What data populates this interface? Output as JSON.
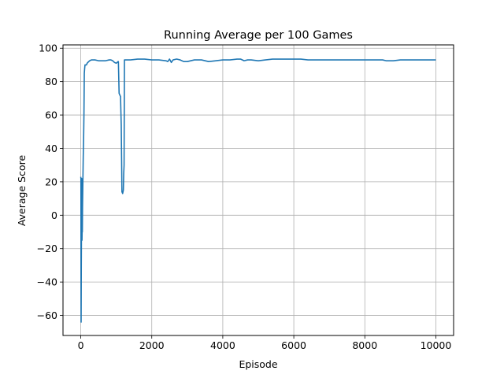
{
  "chart_data": {
    "type": "line",
    "title": "Running Average per 100 Games",
    "xlabel": "Episode",
    "ylabel": "Average Score",
    "xlim": [
      -500,
      10500
    ],
    "ylim": [
      -72,
      102
    ],
    "x_ticks": [
      0,
      2000,
      4000,
      6000,
      8000,
      10000
    ],
    "y_ticks": [
      -60,
      -40,
      -20,
      0,
      20,
      40,
      60,
      80,
      100
    ],
    "grid": true,
    "colors": {
      "line": "#1f77b4",
      "grid": "#b0b0b0",
      "axes": "#000000"
    },
    "series": [
      {
        "x": [
          0,
          5,
          10,
          15,
          20,
          25,
          30,
          35,
          40,
          45,
          50,
          60,
          70,
          80,
          90,
          100,
          110,
          120,
          140,
          160,
          180,
          200,
          250,
          300,
          350,
          400,
          500,
          600,
          700,
          800,
          850,
          900,
          950,
          1000,
          1050,
          1060,
          1080,
          1100,
          1120,
          1140,
          1160,
          1180,
          1200,
          1210,
          1220,
          1230,
          1250,
          1300,
          1400,
          1600,
          1800,
          2000,
          2200,
          2400,
          2450,
          2500,
          2550,
          2600,
          2700,
          2800,
          2900,
          3000,
          3200,
          3400,
          3600,
          3800,
          4000,
          4200,
          4400,
          4500,
          4600,
          4700,
          4800,
          5000,
          5200,
          5400,
          5600,
          5800,
          6000,
          6200,
          6400,
          6600,
          6800,
          7000,
          7200,
          7400,
          7600,
          7800,
          8000,
          8200,
          8400,
          8500,
          8600,
          8800,
          9000,
          9200,
          9400,
          9600,
          9800,
          10000
        ],
        "y": [
          23,
          22,
          -64,
          -32,
          -10,
          22,
          10,
          -15,
          -8,
          -10,
          5,
          20,
          35,
          45,
          60,
          85,
          88,
          90,
          90,
          90,
          91,
          91.5,
          92.5,
          93,
          93,
          93,
          92.5,
          92.5,
          92.5,
          93,
          93,
          92.5,
          91.5,
          91,
          92,
          92,
          73,
          72,
          71,
          54,
          14,
          13,
          15,
          25,
          30,
          93,
          93,
          93,
          93,
          93.5,
          93.5,
          93,
          93,
          92.5,
          92,
          93.5,
          91.5,
          93,
          93.5,
          93,
          92,
          92,
          93,
          93,
          92,
          92.5,
          93,
          93,
          93.5,
          93.5,
          92.5,
          93,
          93,
          92.5,
          93,
          93.5,
          93.5,
          93.5,
          93.5,
          93.5,
          93,
          93,
          93,
          93,
          93,
          93,
          93,
          93,
          93,
          93,
          93,
          93,
          92.5,
          92.5,
          93,
          93,
          93,
          93,
          93,
          93
        ]
      }
    ]
  }
}
